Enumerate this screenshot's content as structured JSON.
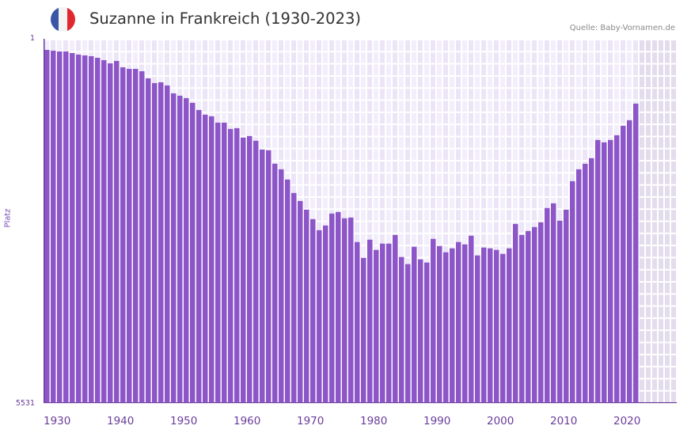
{
  "header": {
    "title": "Suzanne in Frankreich (1930-2023)",
    "source": "Quelle: Baby-Vornamen.de",
    "flag": {
      "icon": "france-flag-icon",
      "colors": [
        "#3a57a7",
        "#f2f2f2",
        "#e0282f"
      ]
    }
  },
  "axis": {
    "y_top_label": "1",
    "y_bottom_label": "5531",
    "y_title": "Platz",
    "x_labels": [
      "1930",
      "1940",
      "1950",
      "1960",
      "1970",
      "1980",
      "1990",
      "2000",
      "2010",
      "2020"
    ]
  },
  "colors": {
    "bar": "#8c55c8",
    "axis": "#6a3d9a",
    "grid_bg_a": "#f2eefb",
    "grid_bg_b": "#ebe5f7",
    "future_bg": "#e2dcec",
    "decade_marker": "#e07078",
    "half_decade_marker": "#f5d9de",
    "marker_bg": "#efeaf8"
  },
  "chart_data": {
    "type": "bar",
    "title": "Suzanne in Frankreich (1930-2023)",
    "xlabel": "",
    "ylabel": "Platz",
    "ylim": [
      5531,
      1
    ],
    "y_inverted_rank": true,
    "x_range": [
      1930,
      2029
    ],
    "grid": true,
    "legend": "none",
    "source": "Quelle: Baby-Vornamen.de",
    "categories": [
      1930,
      1931,
      1932,
      1933,
      1934,
      1935,
      1936,
      1937,
      1938,
      1939,
      1940,
      1941,
      1942,
      1943,
      1944,
      1945,
      1946,
      1947,
      1948,
      1949,
      1950,
      1951,
      1952,
      1953,
      1954,
      1955,
      1956,
      1957,
      1958,
      1959,
      1960,
      1961,
      1962,
      1963,
      1964,
      1965,
      1966,
      1967,
      1968,
      1969,
      1970,
      1971,
      1972,
      1973,
      1974,
      1975,
      1976,
      1977,
      1978,
      1979,
      1980,
      1981,
      1982,
      1983,
      1984,
      1985,
      1986,
      1987,
      1988,
      1989,
      1990,
      1991,
      1992,
      1993,
      1994,
      1995,
      1996,
      1997,
      1998,
      1999,
      2000,
      2001,
      2002,
      2003,
      2004,
      2005,
      2006,
      2007,
      2008,
      2009,
      2010,
      2011,
      2012,
      2013,
      2014,
      2015,
      2016,
      2017,
      2018,
      2019,
      2020,
      2021,
      2022,
      2023
    ],
    "values": [
      158,
      170,
      182,
      182,
      206,
      230,
      242,
      254,
      278,
      314,
      362,
      326,
      423,
      447,
      447,
      483,
      591,
      663,
      651,
      699,
      819,
      855,
      891,
      964,
      1072,
      1144,
      1168,
      1265,
      1265,
      1361,
      1349,
      1493,
      1469,
      1541,
      1674,
      1686,
      1890,
      1975,
      2131,
      2336,
      2457,
      2589,
      2733,
      2902,
      2830,
      2649,
      2625,
      2721,
      2709,
      3082,
      3322,
      3046,
      3202,
      3106,
      3106,
      2974,
      3310,
      3418,
      3154,
      3346,
      3394,
      3034,
      3142,
      3238,
      3178,
      3082,
      3118,
      2986,
      3286,
      3166,
      3178,
      3202,
      3262,
      3178,
      2806,
      2974,
      2914,
      2854,
      2781,
      2565,
      2493,
      2757,
      2589,
      2156,
      1975,
      1891,
      1806,
      1529,
      1565,
      1529,
      1457,
      1313,
      1228,
      976
    ]
  }
}
